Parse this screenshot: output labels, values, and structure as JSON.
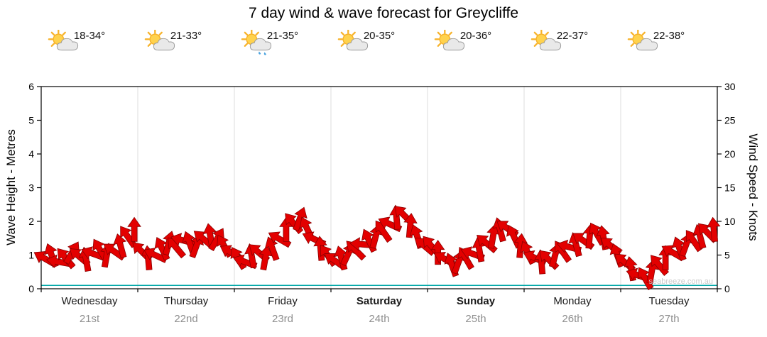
{
  "chart_data": {
    "type": "wind_barb_time_series",
    "title": "7 day wind & wave forecast for Greycliffe",
    "left_axis": {
      "label": "Wave Height - Metres",
      "min": 0,
      "max": 6,
      "ticks": [
        0,
        1,
        2,
        3,
        4,
        5,
        6
      ]
    },
    "right_axis": {
      "label": "Wind Speed - Knots",
      "min": 0,
      "max": 30,
      "ticks": [
        0,
        5,
        10,
        15,
        20,
        25,
        30
      ]
    },
    "days": [
      {
        "name": "Wednesday",
        "date": "21st",
        "temp_range": "18-34°",
        "icon": "sun-cloud",
        "emphasis": false
      },
      {
        "name": "Thursday",
        "date": "22nd",
        "temp_range": "21-33°",
        "icon": "sun-cloud",
        "emphasis": false
      },
      {
        "name": "Friday",
        "date": "23rd",
        "temp_range": "21-35°",
        "icon": "sun-cloud-rain",
        "emphasis": false
      },
      {
        "name": "Saturday",
        "date": "24th",
        "temp_range": "20-35°",
        "icon": "sun-cloud",
        "emphasis": true
      },
      {
        "name": "Sunday",
        "date": "25th",
        "temp_range": "20-36°",
        "icon": "sun-cloud",
        "emphasis": true
      },
      {
        "name": "Monday",
        "date": "26th",
        "temp_range": "22-37°",
        "icon": "sun-cloud",
        "emphasis": false
      },
      {
        "name": "Tuesday",
        "date": "27th",
        "temp_range": "22-38°",
        "icon": "sun-cloud",
        "emphasis": false
      }
    ],
    "samples_per_day": 14,
    "wind_knots": [
      [
        4.5,
        5.0,
        4.0,
        4.6,
        5.4,
        4.8,
        4.4,
        5.2,
        5.8,
        5.0,
        5.6,
        6.4,
        7.8,
        8.8
      ],
      [
        5.6,
        4.6,
        5.0,
        6.0,
        6.8,
        6.2,
        7.2,
        6.8,
        6.4,
        7.4,
        7.9,
        7.4,
        6.4,
        5.4
      ],
      [
        4.6,
        4.0,
        4.9,
        5.4,
        4.6,
        6.0,
        7.4,
        8.8,
        9.8,
        10.4,
        9.0,
        7.4,
        6.0,
        5.0
      ],
      [
        4.2,
        4.6,
        5.2,
        5.8,
        6.6,
        7.2,
        7.8,
        8.6,
        9.6,
        10.6,
        11.0,
        9.4,
        7.8,
        6.4
      ],
      [
        6.4,
        5.4,
        4.4,
        3.6,
        4.0,
        4.6,
        5.2,
        5.8,
        6.8,
        7.8,
        8.8,
        9.0,
        7.8,
        6.4
      ],
      [
        5.4,
        4.6,
        4.0,
        4.4,
        5.0,
        5.6,
        6.2,
        6.6,
        7.2,
        7.8,
        8.2,
        7.6,
        6.4,
        5.0
      ],
      [
        4.0,
        3.0,
        2.0,
        1.6,
        2.6,
        3.6,
        4.6,
        5.4,
        6.0,
        6.6,
        7.2,
        7.8,
        8.4,
        8.8
      ]
    ],
    "wind_dir_deg": [
      [
        210,
        250,
        190,
        230,
        300,
        220,
        260,
        200,
        240,
        280,
        215,
        255,
        235,
        270
      ],
      [
        225,
        265,
        205,
        245,
        285,
        230,
        195,
        250,
        290,
        220,
        260,
        300,
        240,
        210
      ],
      [
        240,
        200,
        260,
        220,
        280,
        250,
        210,
        270,
        230,
        290,
        245,
        205,
        265,
        235
      ],
      [
        215,
        255,
        295,
        225,
        185,
        245,
        285,
        235,
        205,
        265,
        225,
        275,
        250,
        220
      ],
      [
        230,
        270,
        210,
        250,
        290,
        240,
        200,
        260,
        220,
        280,
        255,
        215,
        245,
        275
      ],
      [
        245,
        205,
        265,
        225,
        285,
        235,
        195,
        255,
        215,
        275,
        240,
        260,
        220,
        250
      ],
      [
        220,
        260,
        200,
        240,
        280,
        230,
        270,
        210,
        250,
        290,
        235,
        255,
        225,
        265
      ]
    ],
    "wave_height_m_flat": 0.1,
    "watermark": "seabreeze.com.au",
    "colors": {
      "arrow": "#e30000",
      "arrow_outline": "#8b0000",
      "sun": "#f7b32b",
      "sun_core": "#ffd24d",
      "cloud": "#e9e9e9",
      "cloud_outline": "#9a9a9a",
      "rain": "#4aa3df",
      "date_text": "#8f8f8f",
      "watermark": "#c9c9c9",
      "grid": "#dddddd",
      "wave_line": "#00a7a7",
      "axis": "#000000"
    }
  }
}
